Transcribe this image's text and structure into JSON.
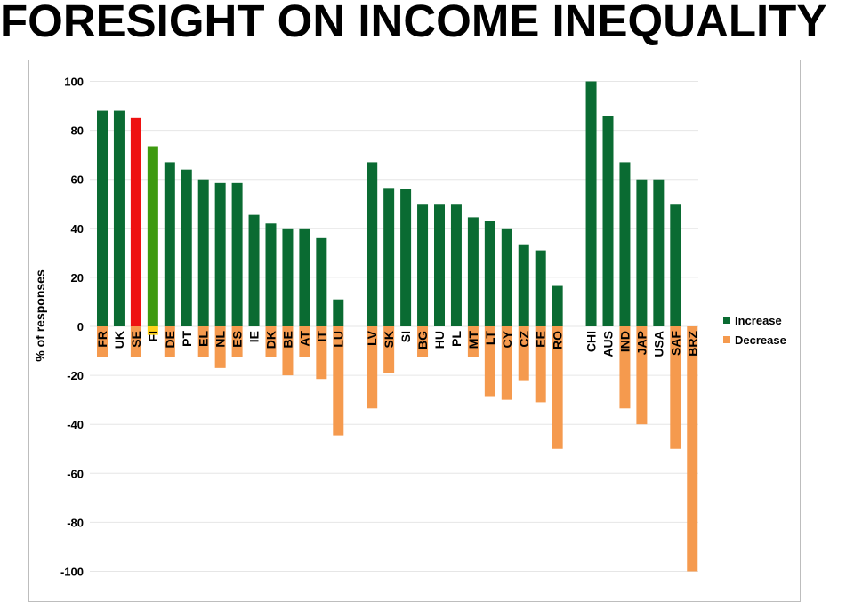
{
  "title": "FORESIGHT ON INCOME INEQUALITY",
  "colors": {
    "increase": "#0a6b32",
    "decrease": "#f59a4e",
    "highlight_red": "#ee1111",
    "highlight_green": "#3e9a10",
    "highlight_yellow": "#ffd21a",
    "grid": "#e6e6e6"
  },
  "chart_data": {
    "type": "bar",
    "ylabel": "% of responses",
    "ylim": [
      -100,
      100
    ],
    "yticks": [
      100,
      80,
      60,
      40,
      20,
      0,
      -20,
      -40,
      -60,
      -80,
      -100
    ],
    "grid": true,
    "legend_position": "right",
    "categories": [
      "FR",
      "UK",
      "SE",
      "FI",
      "DE",
      "PT",
      "EL",
      "NL",
      "ES",
      "IE",
      "DK",
      "BE",
      "AT",
      "IT",
      "LU",
      "LV",
      "SK",
      "SI",
      "BG",
      "HU",
      "PL",
      "MT",
      "LT",
      "CY",
      "CZ",
      "EE",
      "RO",
      "CHI",
      "AUS",
      "IND",
      "JAP",
      "USA",
      "SAF",
      "BRZ"
    ],
    "groups": [
      15,
      12,
      7
    ],
    "series": [
      {
        "name": "Increase",
        "values": [
          88,
          88,
          85,
          73.5,
          67,
          64,
          60,
          58.5,
          58.5,
          45.5,
          42,
          40,
          40,
          36,
          11,
          67,
          56.5,
          56,
          50,
          50,
          50,
          44.5,
          43,
          40,
          33.5,
          31,
          16.5,
          100,
          86,
          67,
          60,
          60,
          50,
          0
        ]
      },
      {
        "name": "Decrease",
        "values": [
          -12.5,
          0,
          -12.5,
          -3.5,
          -12.5,
          0,
          -12.5,
          -17,
          -12.5,
          0,
          -12.5,
          -20,
          -12.5,
          -21.5,
          -44.5,
          -33.5,
          -19,
          0,
          -12.5,
          0,
          0,
          -12.5,
          -28.5,
          -30,
          -22,
          -31,
          -50,
          0,
          0,
          -33.5,
          -40,
          0,
          -50,
          -100
        ]
      }
    ],
    "highlights": [
      {
        "category": "SE",
        "increase_color": "highlight_red"
      },
      {
        "category": "FI",
        "increase_color": "highlight_green",
        "decrease_color": "highlight_yellow"
      }
    ]
  }
}
